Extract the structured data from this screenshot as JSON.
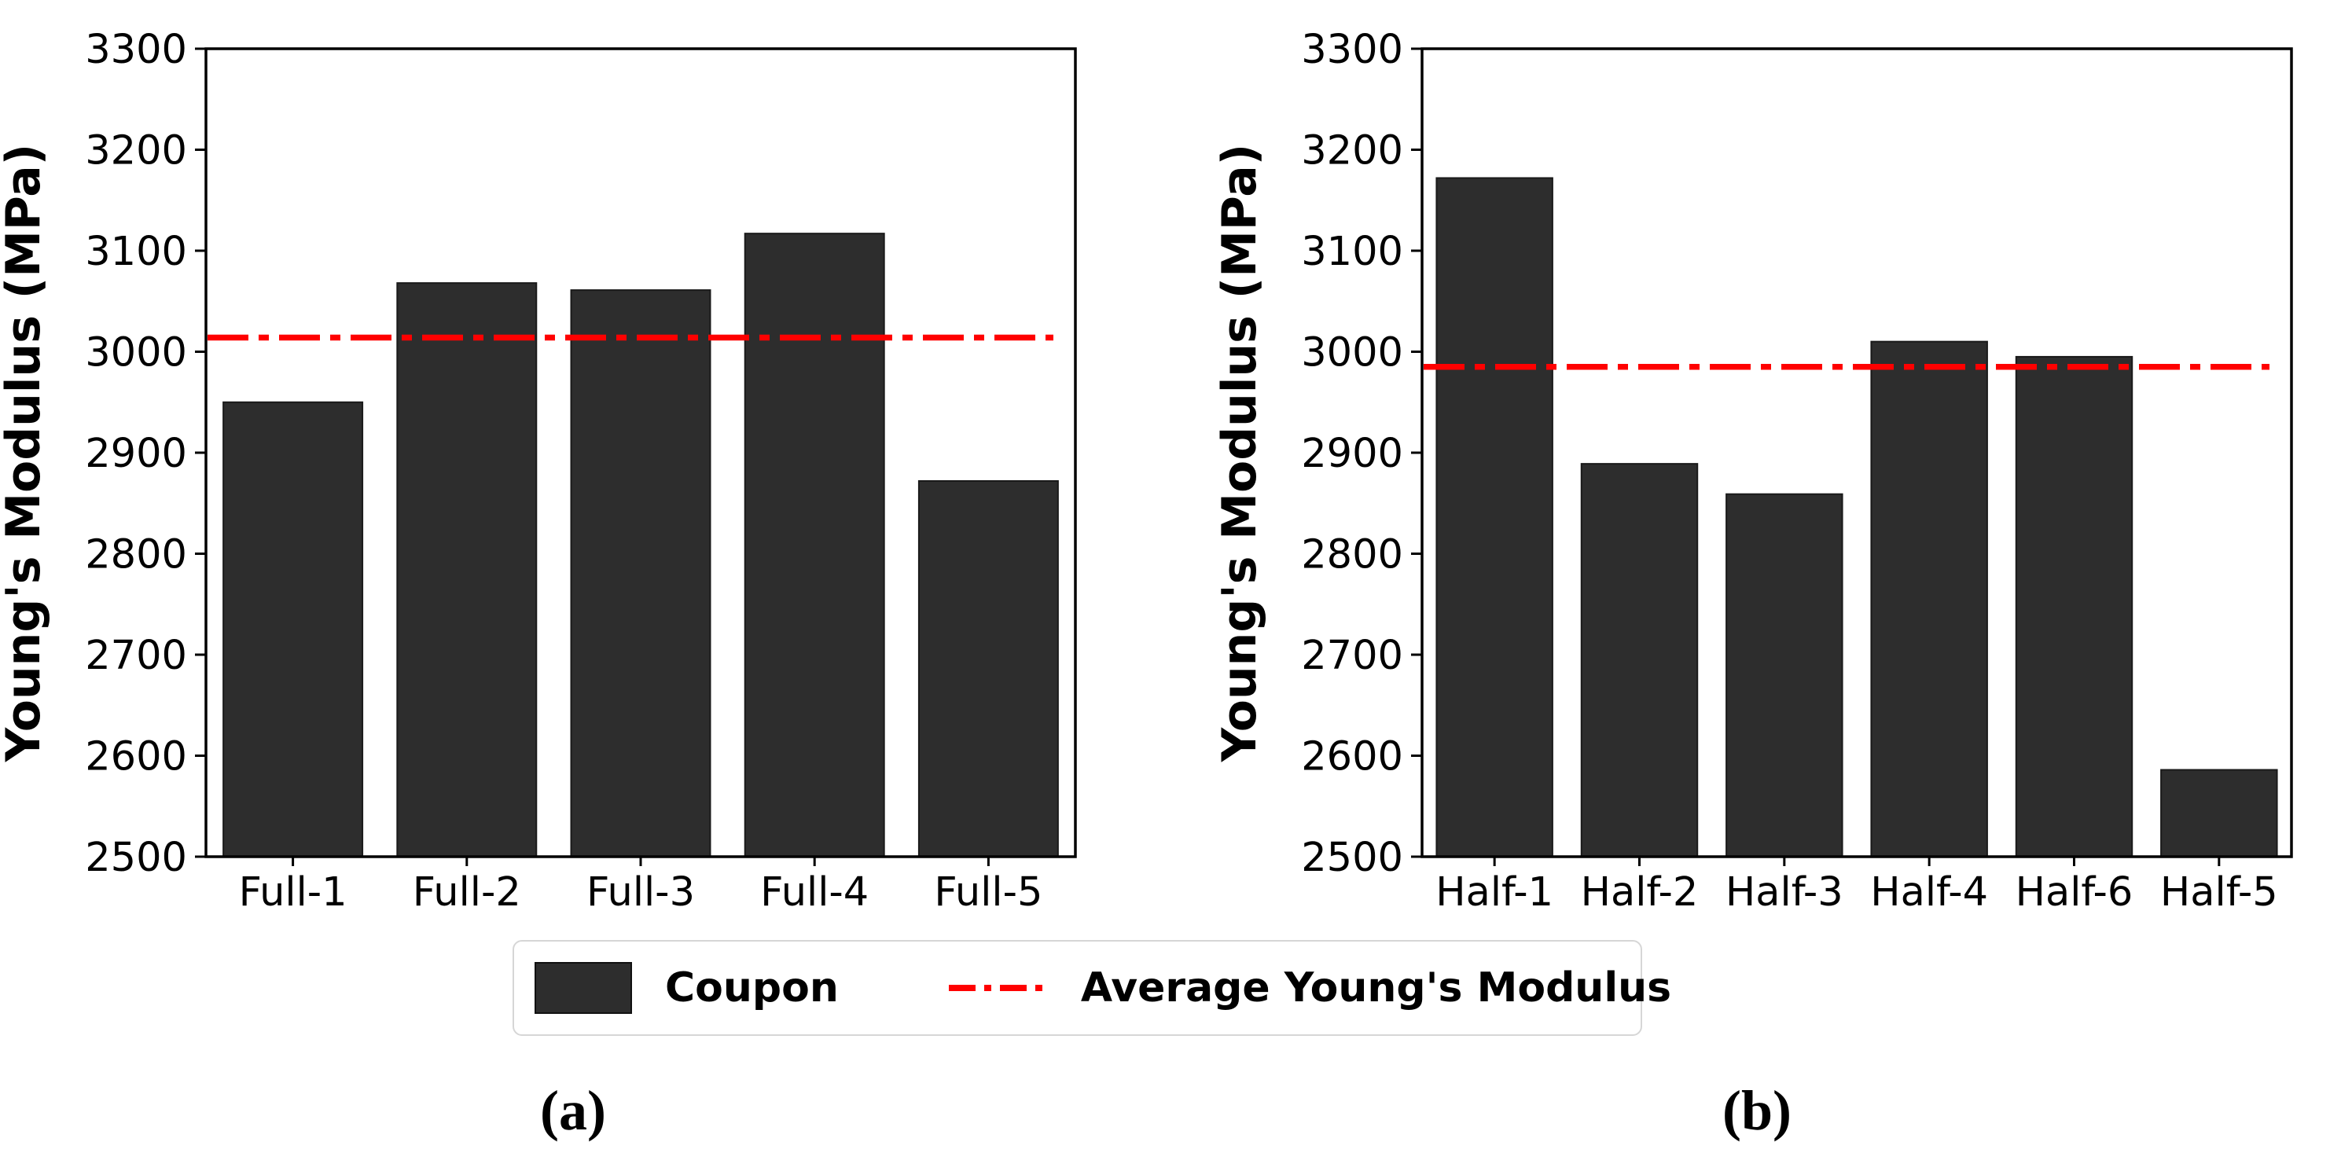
{
  "figure": {
    "legend": {
      "coupon_label": "Coupon",
      "average_label": "Average Young's Modulus"
    },
    "captions": {
      "a": "(a)",
      "b": "(b)"
    },
    "colors": {
      "bar_fill": "#2d2d2d",
      "bar_edge": "#1a1a1a",
      "average_line": "#ff0000",
      "axis": "#000000"
    }
  },
  "chart_data": [
    {
      "type": "bar",
      "panel": "a",
      "ylabel": "Young's Modulus (MPa)",
      "categories": [
        "Full-1",
        "Full-2",
        "Full-3",
        "Full-4",
        "Full-5"
      ],
      "values": [
        2950,
        3068,
        3061,
        3117,
        2872
      ],
      "average_line_value": 3014,
      "ylim": [
        2500,
        3300
      ],
      "ytick_step": 100,
      "yticks": [
        2500,
        2600,
        2700,
        2800,
        2900,
        3000,
        3100,
        3200,
        3300
      ],
      "grid": false,
      "legend_entries": [
        "Coupon",
        "Average Young's Modulus"
      ]
    },
    {
      "type": "bar",
      "panel": "b",
      "ylabel": "Young's Modulus (MPa)",
      "categories": [
        "Half-1",
        "Half-2",
        "Half-3",
        "Half-4",
        "Half-6",
        "Half-5"
      ],
      "values": [
        3172,
        2889,
        2859,
        3010,
        2995,
        2586
      ],
      "average_line_value": 2985,
      "ylim": [
        2500,
        3300
      ],
      "ytick_step": 100,
      "yticks": [
        2500,
        2600,
        2700,
        2800,
        2900,
        3000,
        3100,
        3200,
        3300
      ],
      "grid": false,
      "legend_entries": [
        "Coupon",
        "Average Young's Modulus"
      ]
    }
  ]
}
